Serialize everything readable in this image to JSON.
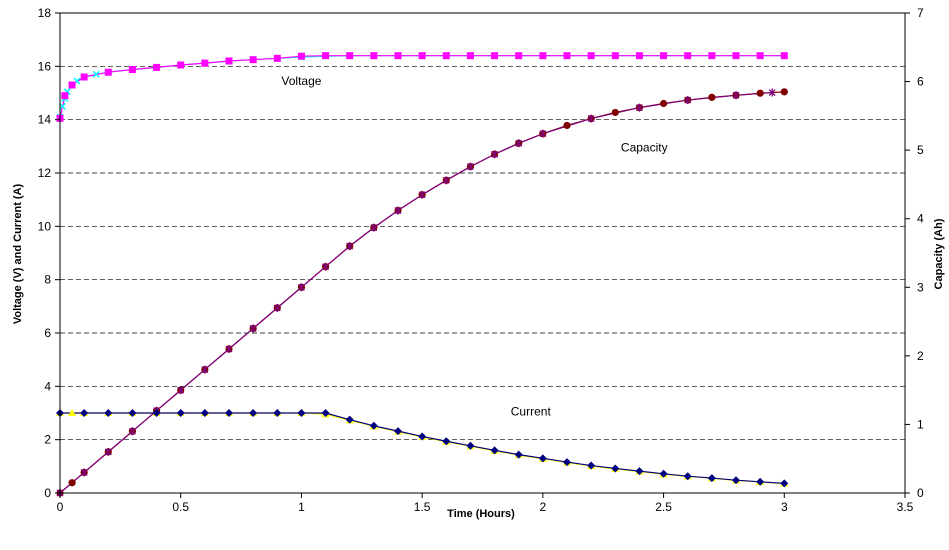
{
  "chart_data": {
    "type": "line",
    "title": "",
    "xlabel": "Time (Hours)",
    "ylabel": "Voltage (V) and Current (A)",
    "y2label": "Capacity (Ah)",
    "xlim": [
      0,
      3.5
    ],
    "ylim": [
      0,
      18
    ],
    "y2lim": [
      0,
      7
    ],
    "x_ticks": [
      "0",
      "0.5",
      "1",
      "1.5",
      "2",
      "2.5",
      "3",
      "3.5"
    ],
    "y_ticks": [
      "0",
      "2",
      "4",
      "6",
      "8",
      "10",
      "12",
      "14",
      "16",
      "18"
    ],
    "y2_ticks": [
      "0",
      "1",
      "2",
      "3",
      "4",
      "5",
      "6",
      "7"
    ],
    "grid": "horizontal dashed",
    "annotations": [
      {
        "text": "Voltage",
        "x": 1.0,
        "y": 15.3
      },
      {
        "text": "Capacity",
        "x": 2.42,
        "y": 12.8
      },
      {
        "text": "Current",
        "x": 1.95,
        "y": 2.9
      }
    ],
    "series": [
      {
        "axis": "left",
        "color": "#00FFFF",
        "marker": "x",
        "line_color": "#00FFFF",
        "x": [
          0,
          0.01,
          0.02,
          0.03,
          0.05,
          0.07,
          0.1,
          0.15,
          0.2,
          0.3,
          0.4,
          0.5,
          0.6,
          0.7,
          0.8,
          0.9,
          1.0,
          1.2,
          1.5,
          2.0,
          2.5,
          3.0
        ],
        "values": [
          14.1,
          14.5,
          14.8,
          15.05,
          15.3,
          15.45,
          15.6,
          15.7,
          15.78,
          15.88,
          15.96,
          16.05,
          16.12,
          16.2,
          16.25,
          16.3,
          16.35,
          16.4,
          16.4,
          16.4,
          16.4,
          16.4
        ]
      },
      {
        "axis": "left",
        "color": "#FF00FF",
        "marker": "square",
        "x": [
          0,
          0.02,
          0.05,
          0.1,
          0.2,
          0.3,
          0.4,
          0.5,
          0.6,
          0.7,
          0.8,
          0.9,
          1.0,
          1.1,
          1.2,
          1.3,
          1.4,
          1.5,
          1.6,
          1.7,
          1.8,
          1.9,
          2.0,
          2.1,
          2.2,
          2.3,
          2.4,
          2.5,
          2.6,
          2.7,
          2.8,
          2.9,
          3.0
        ],
        "values": [
          14.05,
          14.9,
          15.3,
          15.6,
          15.78,
          15.88,
          15.96,
          16.05,
          16.12,
          16.2,
          16.25,
          16.3,
          16.38,
          16.4,
          16.4,
          16.4,
          16.4,
          16.4,
          16.4,
          16.4,
          16.4,
          16.4,
          16.4,
          16.4,
          16.4,
          16.4,
          16.4,
          16.4,
          16.4,
          16.4,
          16.4,
          16.4,
          16.4
        ]
      },
      {
        "axis": "right",
        "color": "#800000",
        "marker": "circle",
        "x": [
          0,
          0.05,
          0.1,
          0.2,
          0.3,
          0.4,
          0.5,
          0.6,
          0.7,
          0.8,
          0.9,
          1.0,
          1.1,
          1.2,
          1.3,
          1.4,
          1.5,
          1.6,
          1.7,
          1.8,
          1.9,
          2.0,
          2.1,
          2.2,
          2.3,
          2.4,
          2.5,
          2.6,
          2.7,
          2.8,
          2.9,
          3.0
        ],
        "values": [
          0,
          0.15,
          0.3,
          0.6,
          0.9,
          1.2,
          1.5,
          1.8,
          2.1,
          2.4,
          2.7,
          3.0,
          3.3,
          3.6,
          3.87,
          4.12,
          4.35,
          4.56,
          4.76,
          4.94,
          5.1,
          5.24,
          5.36,
          5.46,
          5.55,
          5.62,
          5.68,
          5.73,
          5.77,
          5.8,
          5.83,
          5.85
        ]
      },
      {
        "axis": "right",
        "color": "#800080",
        "marker": "star",
        "x": [
          0,
          0.1,
          0.2,
          0.3,
          0.4,
          0.5,
          0.6,
          0.7,
          0.8,
          0.9,
          1.0,
          1.1,
          1.2,
          1.3,
          1.4,
          1.5,
          1.6,
          1.7,
          1.8,
          1.9,
          2.0,
          2.2,
          2.4,
          2.6,
          2.8,
          2.95
        ],
        "values": [
          0,
          0.3,
          0.6,
          0.9,
          1.2,
          1.5,
          1.8,
          2.1,
          2.4,
          2.7,
          3.0,
          3.3,
          3.6,
          3.87,
          4.12,
          4.35,
          4.56,
          4.76,
          4.94,
          5.1,
          5.24,
          5.46,
          5.62,
          5.73,
          5.8,
          5.84
        ]
      },
      {
        "axis": "left",
        "color": "#FFFF00",
        "marker": "triangle",
        "x": [
          0,
          0.05,
          0.1,
          0.2,
          0.3,
          0.4,
          0.5,
          0.6,
          0.7,
          0.8,
          0.9,
          1.0,
          1.1,
          1.2,
          1.3,
          1.4,
          1.5,
          1.6,
          1.7,
          1.8,
          1.9,
          2.0,
          2.1,
          2.2,
          2.3,
          2.4,
          2.5,
          2.6,
          2.7,
          2.8,
          2.9,
          3.0
        ],
        "values": [
          3.0,
          3.0,
          3.0,
          3.0,
          3.0,
          3.0,
          3.0,
          3.0,
          3.0,
          3.0,
          3.0,
          3.0,
          2.95,
          2.72,
          2.5,
          2.3,
          2.1,
          1.92,
          1.75,
          1.58,
          1.42,
          1.28,
          1.14,
          1.01,
          0.9,
          0.8,
          0.7,
          0.62,
          0.55,
          0.47,
          0.41,
          0.35
        ]
      },
      {
        "axis": "left",
        "color": "#000080",
        "marker": "diamond",
        "x": [
          0,
          0.1,
          0.2,
          0.3,
          0.4,
          0.5,
          0.6,
          0.7,
          0.8,
          0.9,
          1.0,
          1.1,
          1.2,
          1.3,
          1.4,
          1.5,
          1.6,
          1.7,
          1.8,
          1.9,
          2.0,
          2.1,
          2.2,
          2.3,
          2.4,
          2.5,
          2.6,
          2.7,
          2.8,
          2.9,
          3.0
        ],
        "values": [
          3.0,
          3.0,
          3.0,
          3.0,
          3.0,
          3.0,
          3.0,
          3.0,
          3.0,
          3.0,
          3.0,
          3.0,
          2.75,
          2.52,
          2.32,
          2.12,
          1.94,
          1.77,
          1.6,
          1.44,
          1.3,
          1.16,
          1.03,
          0.92,
          0.82,
          0.72,
          0.63,
          0.56,
          0.48,
          0.42,
          0.36
        ]
      }
    ]
  }
}
